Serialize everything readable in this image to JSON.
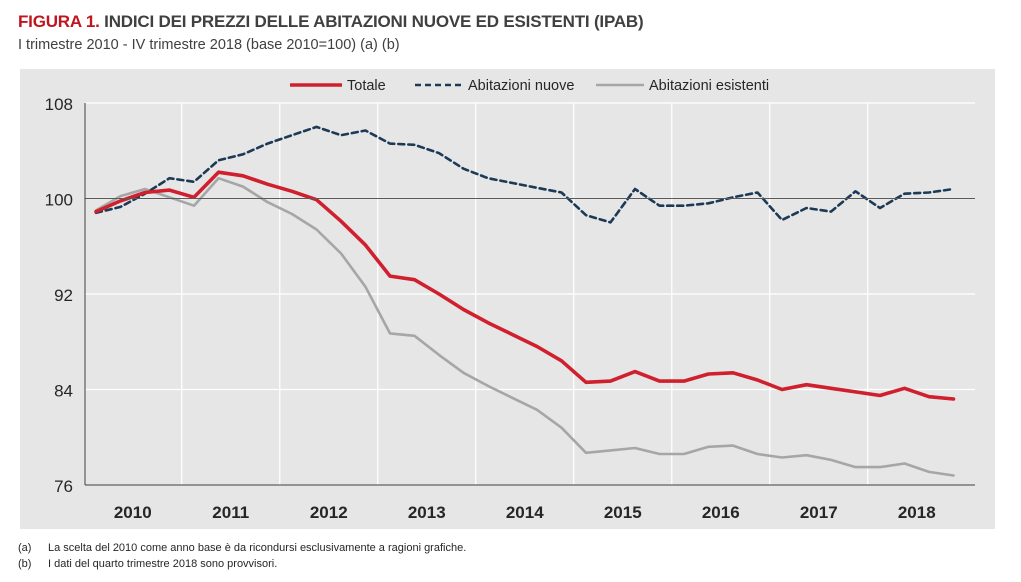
{
  "figure": {
    "label": "FIGURA 1.",
    "title": "INDICI DEI PREZZI DELLE ABITAZIONI NUOVE ED ESISTENTI (IPAB)",
    "subtitle": "I trimestre 2010 - IV trimestre 2018 (base 2010=100) (a) (b)"
  },
  "notes": [
    {
      "mark": "(a)",
      "text": "La scelta del 2010 come anno base è da ricondursi esclusivamente a ragioni grafiche."
    },
    {
      "mark": "(b)",
      "text": "I dati del quarto trimestre 2018 sono provvisori."
    }
  ],
  "colors": {
    "totale": "#d0202e",
    "nuove": "#1c3a56",
    "esistenti": "#a6a6a6",
    "panel_background": "#e6e6e6",
    "title_accent": "#c0141e"
  },
  "chart_data": {
    "type": "line",
    "title": "INDICI DEI PREZZI DELLE ABITAZIONI NUOVE ED ESISTENTI (IPAB)",
    "subtitle": "I trimestre 2010 - IV trimestre 2018 (base 2010=100)",
    "xlabel": "",
    "ylabel": "",
    "ylim": [
      76,
      108
    ],
    "yticks": [
      76,
      84,
      92,
      100,
      108
    ],
    "reference_line": 100,
    "grid": true,
    "legend_position": "top",
    "year_labels": [
      "2010",
      "2011",
      "2012",
      "2013",
      "2014",
      "2015",
      "2016",
      "2017",
      "2018"
    ],
    "x": [
      "2010-T1",
      "2010-T2",
      "2010-T3",
      "2010-T4",
      "2011-T1",
      "2011-T2",
      "2011-T3",
      "2011-T4",
      "2012-T1",
      "2012-T2",
      "2012-T3",
      "2012-T4",
      "2013-T1",
      "2013-T2",
      "2013-T3",
      "2013-T4",
      "2014-T1",
      "2014-T2",
      "2014-T3",
      "2014-T4",
      "2015-T1",
      "2015-T2",
      "2015-T3",
      "2015-T4",
      "2016-T1",
      "2016-T2",
      "2016-T3",
      "2016-T4",
      "2017-T1",
      "2017-T2",
      "2017-T3",
      "2017-T4",
      "2018-T1",
      "2018-T2",
      "2018-T3",
      "2018-T4"
    ],
    "series": [
      {
        "name": "Totale",
        "style": "solid",
        "values": [
          98.9,
          99.8,
          100.5,
          100.7,
          100.1,
          102.2,
          101.9,
          101.2,
          100.6,
          99.9,
          98.1,
          96.1,
          93.5,
          93.2,
          92.0,
          90.7,
          89.6,
          88.6,
          87.6,
          86.4,
          84.6,
          84.7,
          85.5,
          84.7,
          84.7,
          85.3,
          85.4,
          84.8,
          84.0,
          84.4,
          84.1,
          83.8,
          83.5,
          84.1,
          83.4,
          83.2
        ]
      },
      {
        "name": "Abitazioni nuove",
        "style": "dashed",
        "values": [
          98.8,
          99.3,
          100.4,
          101.7,
          101.4,
          103.2,
          103.7,
          104.6,
          105.3,
          106.0,
          105.3,
          105.7,
          104.6,
          104.5,
          103.8,
          102.5,
          101.7,
          101.3,
          100.9,
          100.5,
          98.6,
          98.0,
          100.8,
          99.4,
          99.4,
          99.6,
          100.1,
          100.5,
          98.2,
          99.2,
          98.9,
          100.6,
          99.2,
          100.4,
          100.5,
          100.8
        ]
      },
      {
        "name": "Abitazioni esistenti",
        "style": "solid",
        "values": [
          99.0,
          100.2,
          100.8,
          100.1,
          99.4,
          101.7,
          101.0,
          99.7,
          98.7,
          97.4,
          95.4,
          92.6,
          88.7,
          88.5,
          86.9,
          85.4,
          84.3,
          83.3,
          82.3,
          80.8,
          78.7,
          78.9,
          79.1,
          78.6,
          78.6,
          79.2,
          79.3,
          78.6,
          78.3,
          78.5,
          78.1,
          77.5,
          77.5,
          77.8,
          77.1,
          76.8
        ]
      }
    ]
  }
}
